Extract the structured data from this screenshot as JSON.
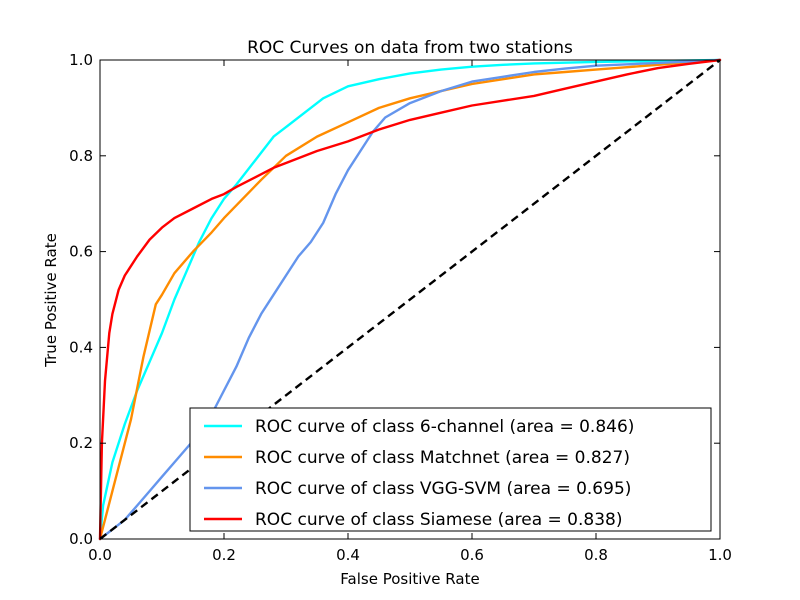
{
  "chart_data": {
    "type": "line",
    "title": "ROC Curves on data from two stations",
    "xlabel": "False Positive Rate",
    "ylabel": "True Positive Rate",
    "xlim": [
      0.0,
      1.0
    ],
    "ylim": [
      0.0,
      1.0
    ],
    "xticks": [
      "0.0",
      "0.2",
      "0.4",
      "0.6",
      "0.8",
      "1.0"
    ],
    "yticks": [
      "0.0",
      "0.2",
      "0.4",
      "0.6",
      "0.8",
      "1.0"
    ],
    "grid": false,
    "legend_position": "bottom-right",
    "series": [
      {
        "name": "6-channel",
        "label": "ROC curve of class 6-channel (area = 0.846)",
        "color": "#00FFFF",
        "x": [
          0.0,
          0.005,
          0.02,
          0.04,
          0.06,
          0.08,
          0.1,
          0.12,
          0.14,
          0.16,
          0.18,
          0.2,
          0.22,
          0.25,
          0.28,
          0.3,
          0.33,
          0.36,
          0.4,
          0.45,
          0.5,
          0.55,
          0.6,
          0.65,
          0.7,
          0.8,
          0.9,
          1.0
        ],
        "y": [
          0.0,
          0.07,
          0.16,
          0.24,
          0.31,
          0.37,
          0.43,
          0.5,
          0.56,
          0.62,
          0.67,
          0.71,
          0.74,
          0.79,
          0.84,
          0.86,
          0.89,
          0.92,
          0.945,
          0.96,
          0.972,
          0.98,
          0.986,
          0.99,
          0.993,
          0.996,
          0.998,
          1.0
        ]
      },
      {
        "name": "Matchnet",
        "label": "ROC curve of class Matchnet (area = 0.827)",
        "color": "#FF8C00",
        "x": [
          0.0,
          0.02,
          0.05,
          0.07,
          0.09,
          0.1,
          0.12,
          0.15,
          0.18,
          0.2,
          0.23,
          0.26,
          0.3,
          0.35,
          0.4,
          0.45,
          0.5,
          0.55,
          0.6,
          0.65,
          0.7,
          0.75,
          0.8,
          0.85,
          0.9,
          0.95,
          1.0
        ],
        "y": [
          0.0,
          0.1,
          0.25,
          0.38,
          0.49,
          0.51,
          0.555,
          0.6,
          0.64,
          0.67,
          0.71,
          0.75,
          0.8,
          0.84,
          0.87,
          0.9,
          0.92,
          0.935,
          0.95,
          0.96,
          0.97,
          0.975,
          0.98,
          0.985,
          0.99,
          0.995,
          1.0
        ]
      },
      {
        "name": "VGG-SVM",
        "label": "ROC curve of class VGG-SVM (area = 0.695)",
        "color": "#6495ED",
        "x": [
          0.0,
          0.02,
          0.04,
          0.06,
          0.08,
          0.1,
          0.12,
          0.14,
          0.16,
          0.18,
          0.2,
          0.22,
          0.24,
          0.26,
          0.28,
          0.3,
          0.32,
          0.34,
          0.36,
          0.38,
          0.4,
          0.42,
          0.44,
          0.46,
          0.5,
          0.55,
          0.6,
          0.65,
          0.7,
          0.75,
          0.8,
          0.9,
          1.0
        ],
        "y": [
          0.0,
          0.02,
          0.04,
          0.07,
          0.1,
          0.13,
          0.16,
          0.19,
          0.22,
          0.26,
          0.31,
          0.36,
          0.42,
          0.47,
          0.51,
          0.55,
          0.59,
          0.62,
          0.66,
          0.72,
          0.77,
          0.81,
          0.85,
          0.88,
          0.91,
          0.935,
          0.955,
          0.965,
          0.975,
          0.982,
          0.988,
          0.994,
          1.0
        ]
      },
      {
        "name": "Siamese",
        "label": "ROC curve of class Siamese (area = 0.838)",
        "color": "#FF0000",
        "x": [
          0.0,
          0.003,
          0.008,
          0.015,
          0.02,
          0.03,
          0.04,
          0.06,
          0.08,
          0.1,
          0.12,
          0.15,
          0.18,
          0.2,
          0.22,
          0.25,
          0.28,
          0.3,
          0.35,
          0.4,
          0.45,
          0.5,
          0.55,
          0.6,
          0.65,
          0.7,
          0.75,
          0.8,
          0.85,
          0.9,
          0.95,
          1.0
        ],
        "y": [
          0.0,
          0.2,
          0.33,
          0.43,
          0.47,
          0.52,
          0.55,
          0.59,
          0.625,
          0.65,
          0.67,
          0.69,
          0.71,
          0.72,
          0.735,
          0.755,
          0.775,
          0.785,
          0.81,
          0.83,
          0.855,
          0.875,
          0.89,
          0.905,
          0.915,
          0.925,
          0.94,
          0.955,
          0.97,
          0.983,
          0.992,
          1.0
        ]
      }
    ],
    "reference_line": {
      "x": [
        0.0,
        1.0
      ],
      "y": [
        0.0,
        1.0
      ],
      "color": "#000000",
      "style": "dashed"
    }
  }
}
